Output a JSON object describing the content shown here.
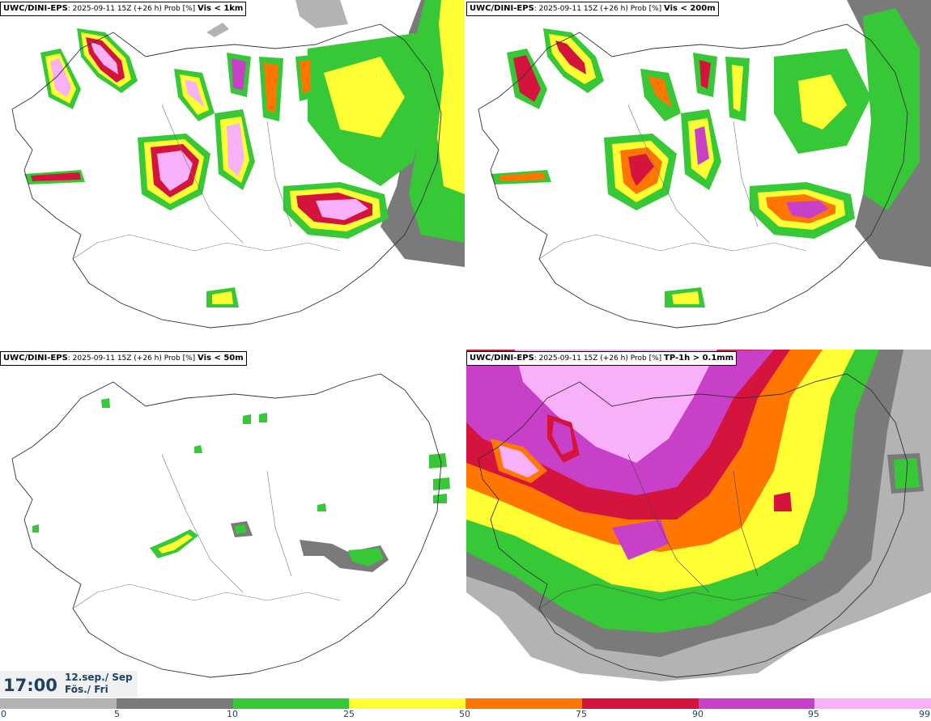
{
  "panels": [
    {
      "model": "UWC/DINI-EPS",
      "run": ": 2025-09-11 15Z (+26 h) Prob [%] ",
      "variable": "Vis < 1km"
    },
    {
      "model": "UWC/DINI-EPS",
      "run": ": 2025-09-11 15Z (+26 h) Prob [%] ",
      "variable": "Vis < 200m"
    },
    {
      "model": "UWC/DINI-EPS",
      "run": ": 2025-09-11 15Z (+26 h) Prob [%] ",
      "variable": "Vis < 50m"
    },
    {
      "model": "UWC/DINI-EPS",
      "run": ": 2025-09-11 15Z (+26 h) Prob [%] ",
      "variable": "TP-1h > 0.1mm"
    }
  ],
  "valid_time": {
    "time": "17:00",
    "date_line": "12.sep./ Sep",
    "day_line": "Fös./ Fri"
  },
  "colorbar": {
    "ticks": [
      "0",
      "5",
      "10",
      "25",
      "50",
      "75",
      "90",
      "95",
      "99"
    ],
    "colors": [
      "#b3b3b3",
      "#7a7a7a",
      "#37c837",
      "#ffff33",
      "#ff7700",
      "#d4143c",
      "#c840c8",
      "#f8b0f8"
    ]
  }
}
